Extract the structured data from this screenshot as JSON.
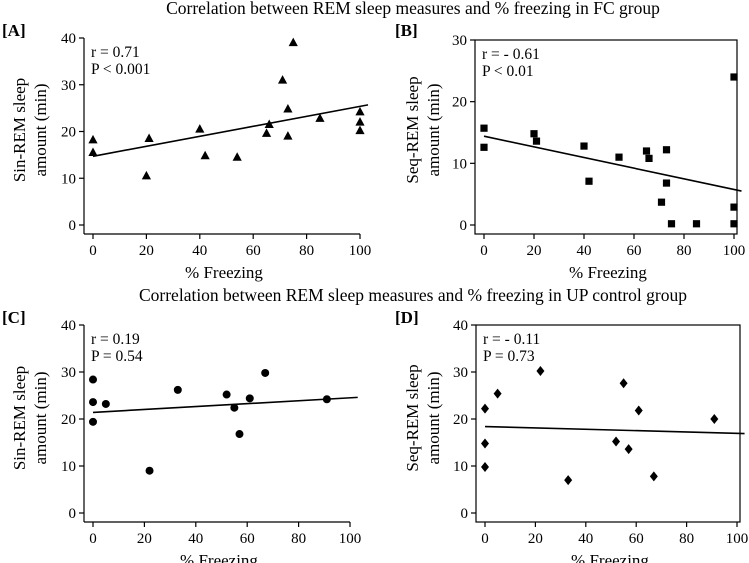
{
  "headings": {
    "fc": "Correlation between REM sleep measures and % freezing in FC group",
    "up": "Correlation between REM sleep measures and % freezing in UP control group"
  },
  "chart_data": [
    {
      "type": "scatter",
      "panel": "[A]",
      "group": "FC",
      "marker": "triangle",
      "xlabel": "% Freezing",
      "ylabel": [
        "Sin-REM sleep",
        "amount (min)"
      ],
      "xlim": [
        0,
        100
      ],
      "ylim": [
        0,
        40
      ],
      "xticks": [
        0,
        20,
        40,
        60,
        80,
        100
      ],
      "yticks": [
        0,
        10,
        20,
        30,
        40
      ],
      "stats": [
        "r = 0.71",
        "P < 0.001"
      ],
      "fit_line": {
        "x": [
          0,
          103
        ],
        "y": [
          14.7,
          25.7
        ]
      },
      "x": [
        0,
        0,
        20,
        21,
        40,
        42,
        54,
        65,
        66,
        71,
        73,
        73,
        75,
        85,
        100,
        100,
        100
      ],
      "y": [
        15.5,
        18.2,
        10.5,
        18.5,
        20.5,
        14.8,
        14.5,
        19.6,
        21.5,
        31,
        19,
        24.8,
        39,
        22.8,
        24.2,
        22,
        20.2
      ]
    },
    {
      "type": "scatter",
      "panel": "[B]",
      "group": "FC",
      "marker": "square",
      "xlabel": "% Freezing",
      "ylabel": [
        "Seq-REM sleep",
        "amount (min)"
      ],
      "xlim": [
        0,
        100
      ],
      "ylim": [
        0,
        30
      ],
      "xticks": [
        0,
        20,
        40,
        60,
        80,
        100
      ],
      "yticks": [
        0,
        10,
        20,
        30
      ],
      "stats": [
        "r = - 0.61",
        "P < 0.01"
      ],
      "fit_line": {
        "x": [
          0,
          103
        ],
        "y": [
          14.4,
          5.5
        ]
      },
      "x": [
        0,
        0,
        20,
        21,
        40,
        42,
        54,
        65,
        66,
        71,
        73,
        73,
        75,
        85,
        100,
        100,
        100
      ],
      "y": [
        15.7,
        12.6,
        14.8,
        13.6,
        12.8,
        7.1,
        11,
        12,
        10.8,
        3.7,
        12.2,
        6.8,
        0.2,
        0.2,
        24,
        2.9,
        0.2
      ]
    },
    {
      "type": "scatter",
      "panel": "[C]",
      "group": "UP control",
      "marker": "circle",
      "xlabel": "% Freezing",
      "ylabel": [
        "Sin-REM sleep",
        "amount (min)"
      ],
      "xlim": [
        0,
        100
      ],
      "ylim": [
        0,
        40
      ],
      "xticks": [
        0,
        20,
        40,
        60,
        80,
        100
      ],
      "yticks": [
        0,
        10,
        20,
        30,
        40
      ],
      "stats": [
        "r = 0.19",
        "P = 0.54"
      ],
      "fit_line": {
        "x": [
          0,
          103
        ],
        "y": [
          21.4,
          24.6
        ]
      },
      "x": [
        0,
        0,
        0,
        5,
        22,
        33,
        52,
        55,
        57,
        61,
        67,
        91
      ],
      "y": [
        28.4,
        23.6,
        19.4,
        23.2,
        9,
        26.2,
        25.2,
        22.4,
        16.8,
        24.4,
        29.8,
        24.2
      ]
    },
    {
      "type": "scatter",
      "panel": "[D]",
      "group": "UP control",
      "marker": "diamond",
      "xlabel": "% Freezing",
      "ylabel": [
        "Seq-REM sleep",
        "amount (min)"
      ],
      "xlim": [
        0,
        100
      ],
      "ylim": [
        0,
        40
      ],
      "xticks": [
        0,
        20,
        40,
        60,
        80,
        100
      ],
      "yticks": [
        0,
        10,
        20,
        30,
        40
      ],
      "stats": [
        "r = - 0.11",
        "P = 0.73"
      ],
      "fit_line": {
        "x": [
          0,
          103
        ],
        "y": [
          18.4,
          16.9
        ]
      },
      "x": [
        0,
        0,
        0,
        5,
        22,
        33,
        52,
        55,
        57,
        61,
        67,
        91
      ],
      "y": [
        22.2,
        14.8,
        9.8,
        25.4,
        30.2,
        7,
        15.2,
        27.6,
        13.6,
        21.8,
        7.8,
        20
      ]
    }
  ]
}
